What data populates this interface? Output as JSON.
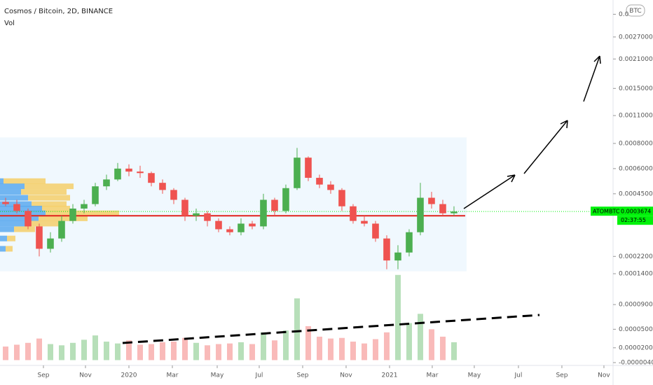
{
  "chart_data": {
    "type": "candlestick",
    "title": "Cosmos / Bitcoin, 2D, BINANCE",
    "subtitle": "Vol",
    "currency_badge": "BTC",
    "log_scale": true,
    "xlim": [
      -0.5,
      54.19
    ],
    "xticks": [
      {
        "value": 3.375,
        "label": "Sep"
      },
      {
        "value": 7.125,
        "label": "Nov"
      },
      {
        "value": 11,
        "label": "2020"
      },
      {
        "value": 14.875,
        "label": "Mar"
      },
      {
        "value": 18.875,
        "label": "May"
      },
      {
        "value": 22.625,
        "label": "Jul"
      },
      {
        "value": 26.5,
        "label": "Sep"
      },
      {
        "value": 30.375,
        "label": "Nov"
      },
      {
        "value": 34.25,
        "label": "2021"
      },
      {
        "value": 38.06,
        "label": "Mar"
      },
      {
        "value": 41.81,
        "label": "May"
      },
      {
        "value": 45.75,
        "label": "Jul"
      },
      {
        "value": 49.625,
        "label": "Sep"
      },
      {
        "value": 53.375,
        "label": "Nov"
      }
    ],
    "ylim": [
      0.000182,
      0.00412
    ],
    "yticks": [
      {
        "value": 0.0035,
        "label": "0.0"
      },
      {
        "value": 0.0027,
        "label": "0.0027000"
      },
      {
        "value": 0.0021,
        "label": "0.0021000"
      },
      {
        "value": 0.0015,
        "label": "0.0015000"
      },
      {
        "value": 0.0011,
        "label": "0.0011000"
      },
      {
        "value": 0.0008,
        "label": "0.0008000"
      },
      {
        "value": 0.0006,
        "label": "0.0006000"
      },
      {
        "value": 0.00045,
        "label": "0.0004500"
      },
      {
        "value": 0.00022,
        "label": "0.0002200"
      }
    ],
    "y2lim": [
      -4e-06,
      0.00014
    ],
    "y2ticks": [
      {
        "value": 0.00014,
        "label": "0.0001400"
      },
      {
        "value": 9e-05,
        "label": "0.0000900"
      },
      {
        "value": 5e-05,
        "label": "0.0000500"
      },
      {
        "value": 2e-05,
        "label": "0.0000200"
      },
      {
        "value": -4e-06,
        "label": "-0.0000040"
      }
    ],
    "up_color": "#4caf50",
    "down_color": "#ef5350",
    "open": [
      0.00041,
      0.0004,
      0.00037,
      0.00031,
      0.00024,
      0.00027,
      0.00033,
      0.00038,
      0.0004,
      0.00049,
      0.00053,
      0.0006,
      0.00058,
      0.00057,
      0.00051,
      0.00047,
      0.00042,
      0.00035,
      0.00036,
      0.00033,
      0.0003,
      0.00029,
      0.00032,
      0.00031,
      0.00042,
      0.00037,
      0.00048,
      0.00068,
      0.00054,
      0.0005,
      0.00047,
      0.00039,
      0.00033,
      0.00032,
      0.00027,
      0.00021,
      0.00023,
      0.00029,
      0.00043,
      0.0004,
      0.00036
    ],
    "high": [
      0.00043,
      0.00042,
      0.00038,
      0.00032,
      0.00029,
      0.00035,
      0.0004,
      0.00042,
      0.00051,
      0.00056,
      0.00064,
      0.00063,
      0.00062,
      0.00058,
      0.00053,
      0.00048,
      0.00043,
      0.00038,
      0.00037,
      0.00034,
      0.00031,
      0.00034,
      0.00033,
      0.00045,
      0.00043,
      0.0005,
      0.00076,
      0.00069,
      0.00056,
      0.00052,
      0.00048,
      0.0004,
      0.00035,
      0.00033,
      0.00028,
      0.00025,
      0.0003,
      0.00051,
      0.00046,
      0.00042,
      0.00039
    ],
    "low": [
      0.00039,
      0.00036,
      0.0003,
      0.00022,
      0.00023,
      0.00026,
      0.00032,
      0.00036,
      0.00039,
      0.00047,
      0.00052,
      0.00055,
      0.00054,
      0.00049,
      0.00045,
      0.0004,
      0.00033,
      0.00033,
      0.00031,
      0.00029,
      0.00028,
      0.00028,
      0.0003,
      0.0003,
      0.00035,
      0.00036,
      0.00047,
      0.00052,
      0.00048,
      0.00045,
      0.00037,
      0.00032,
      0.00031,
      0.00026,
      0.00019,
      0.00019,
      0.00022,
      0.00028,
      0.00038,
      0.00035,
      0.00035
    ],
    "close": [
      0.0004,
      0.00037,
      0.00031,
      0.00024,
      0.00027,
      0.00033,
      0.00038,
      0.0004,
      0.00049,
      0.00053,
      0.0006,
      0.00058,
      0.00057,
      0.00051,
      0.00047,
      0.00042,
      0.00035,
      0.00036,
      0.00033,
      0.0003,
      0.00029,
      0.00032,
      0.00031,
      0.00042,
      0.00037,
      0.00048,
      0.00068,
      0.00054,
      0.0005,
      0.00047,
      0.00039,
      0.00033,
      0.00032,
      0.00027,
      0.00021,
      0.00023,
      0.00029,
      0.00043,
      0.0004,
      0.00036,
      0.0003674
    ],
    "volume": [
      2.2e-05,
      2.5e-05,
      2.8e-05,
      3.5e-05,
      2.6e-05,
      2.4e-05,
      2.8e-05,
      3.3e-05,
      4e-05,
      3e-05,
      2.7e-05,
      3.2e-05,
      2.5e-05,
      2.6e-05,
      2.9e-05,
      3e-05,
      3.6e-05,
      2.8e-05,
      2.4e-05,
      2.6e-05,
      2.7e-05,
      2.9e-05,
      2.6e-05,
      4.5e-05,
      3.2e-05,
      4.8e-05,
      0.0001,
      5.5e-05,
      3.8e-05,
      3.5e-05,
      3.6e-05,
      3e-05,
      2.7e-05,
      3.4e-05,
      4.5e-05,
      0.000138,
      6e-05,
      7.5e-05,
      5e-05,
      3.8e-05,
      2.9e-05
    ],
    "volume_profile": {
      "prices": [
        0.00052,
        0.00049,
        0.00046,
        0.00043,
        0.0004,
        0.00038,
        0.00036,
        0.00034,
        0.00032,
        0.0003,
        0.00027,
        0.00024
      ],
      "up": [
        5,
        35,
        30,
        40,
        45,
        60,
        65,
        55,
        40,
        20,
        10,
        8
      ],
      "down": [
        60,
        70,
        65,
        60,
        50,
        40,
        105,
        70,
        45,
        30,
        12,
        10
      ],
      "up_color": "#5aa9ee",
      "down_color": "#f5cf6a"
    },
    "level_line": {
      "value": 0.00035,
      "color": "#e0231c"
    },
    "price_tag": {
      "symbol": "ATOMBTC",
      "value": 0.0003674,
      "countdown": "02:37:55",
      "color": "#00f20a"
    }
  }
}
